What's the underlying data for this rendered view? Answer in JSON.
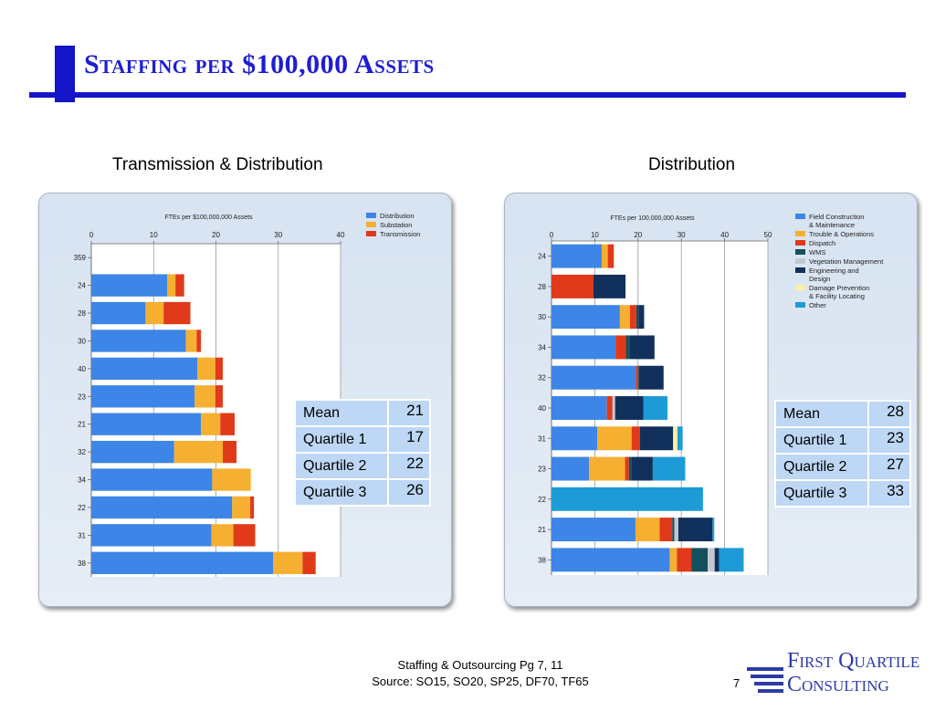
{
  "slide": {
    "title": "Staffing per $100,000 Assets",
    "footer_line1": "Staffing & Outsourcing Pg 7, 11",
    "footer_line2": "Source: SO15, SO20, SP25, DF70, TF65",
    "page_number": "7",
    "logo_line1": "First Quartile",
    "logo_line2": "Consulting",
    "colors": {
      "title": "#1e1ed2",
      "bar": "#1414c8"
    }
  },
  "left": {
    "heading": "Transmission & Distribution",
    "stats": [
      {
        "label": "Mean",
        "value": "21"
      },
      {
        "label": "Quartile 1",
        "value": "17"
      },
      {
        "label": "Quartile 2",
        "value": "22"
      },
      {
        "label": "Quartile 3",
        "value": "26"
      }
    ]
  },
  "right": {
    "heading": "Distribution",
    "stats": [
      {
        "label": "Mean",
        "value": "28"
      },
      {
        "label": "Quartile 1",
        "value": "23"
      },
      {
        "label": "Quartile 2",
        "value": "27"
      },
      {
        "label": "Quartile 3",
        "value": "33"
      }
    ]
  },
  "chart_data": [
    {
      "type": "bar",
      "orientation": "horizontal",
      "stacked": true,
      "title": "FTEs per $100,000,000 Assets",
      "xlim": [
        0,
        40
      ],
      "xticks": [
        0,
        10,
        20,
        30,
        40
      ],
      "grid": true,
      "legend_position": "top-right",
      "categories": [
        "359",
        "24",
        "28",
        "30",
        "40",
        "23",
        "21",
        "32",
        "34",
        "22",
        "31",
        "38"
      ],
      "series": [
        {
          "name": "Distribution",
          "color": "#3d85e6",
          "values": [
            0,
            12.2,
            8.7,
            15.2,
            17.0,
            16.6,
            17.6,
            13.3,
            19.4,
            22.6,
            19.3,
            29.2
          ]
        },
        {
          "name": "Substation",
          "color": "#f5b031",
          "values": [
            0,
            1.3,
            2.9,
            1.7,
            2.9,
            3.3,
            3.1,
            7.8,
            6.2,
            2.9,
            3.5,
            4.7
          ]
        },
        {
          "name": "Transmission",
          "color": "#e03a1a",
          "values": [
            0,
            1.4,
            4.3,
            0.7,
            1.2,
            1.2,
            2.3,
            2.2,
            0,
            0.6,
            3.5,
            2.1
          ]
        }
      ]
    },
    {
      "type": "bar",
      "orientation": "horizontal",
      "stacked": true,
      "title": "FTEs per 100,000,000 Assets",
      "xlim": [
        0,
        50
      ],
      "xticks": [
        0,
        10,
        20,
        30,
        40,
        50
      ],
      "grid": true,
      "legend_position": "top-right",
      "categories": [
        "24",
        "28",
        "30",
        "34",
        "32",
        "40",
        "31",
        "23",
        "22",
        "21",
        "38"
      ],
      "series": [
        {
          "name": "Field Construction & Maintenance",
          "color": "#3d85e6",
          "values": [
            11.6,
            0,
            15.8,
            14.8,
            19.5,
            12.8,
            10.6,
            8.7,
            0,
            19.4,
            27.3
          ]
        },
        {
          "name": "Trouble & Operations",
          "color": "#f5b031",
          "values": [
            1.4,
            0,
            2.3,
            0,
            0,
            0,
            7.9,
            8.3,
            0,
            5.6,
            1.7
          ]
        },
        {
          "name": "Dispatch",
          "color": "#e03a1a",
          "values": [
            1.4,
            9.7,
            1.5,
            2.4,
            0.5,
            1.3,
            1.9,
            0.9,
            0,
            2.9,
            3.3
          ]
        },
        {
          "name": "WMS",
          "color": "#14505e",
          "values": [
            0,
            0,
            0.5,
            0.8,
            0.2,
            0,
            0,
            0.5,
            0,
            0.5,
            3.8
          ]
        },
        {
          "name": "Vegetation Management",
          "color": "#c4c9d1",
          "values": [
            0,
            0,
            0,
            0,
            0,
            0.6,
            0,
            0,
            0,
            0.9,
            1.6
          ]
        },
        {
          "name": "Engineering and Design",
          "color": "#12305c",
          "values": [
            0,
            7.4,
            1.3,
            5.8,
            5.7,
            6.5,
            7.7,
            5.0,
            0,
            7.9,
            1.0
          ]
        },
        {
          "name": "Damage Prevention & Facility Locating",
          "color": "#fbeea6",
          "values": [
            0,
            0,
            0,
            0,
            0,
            0,
            1.0,
            0,
            0,
            0,
            0
          ]
        },
        {
          "name": "Other",
          "color": "#1d9bd6",
          "values": [
            0,
            0,
            0,
            0,
            0,
            5.6,
            1.2,
            7.5,
            35.0,
            0.4,
            5.7
          ]
        }
      ]
    }
  ]
}
